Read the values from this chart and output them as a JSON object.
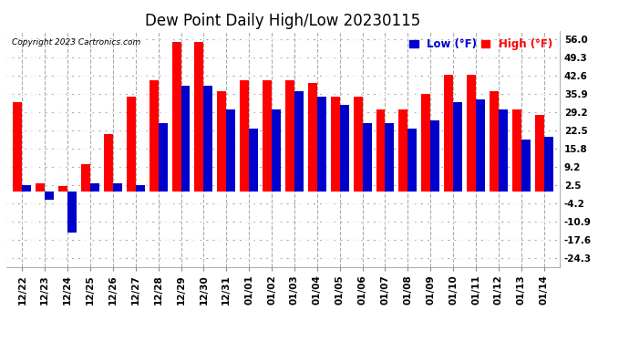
{
  "title": "Dew Point Daily High/Low 20230115",
  "copyright": "Copyright 2023 Cartronics.com",
  "legend_low_label": "Low (°F)",
  "legend_high_label": "High (°F)",
  "dates": [
    "12/22",
    "12/23",
    "12/24",
    "12/25",
    "12/26",
    "12/27",
    "12/28",
    "12/29",
    "12/30",
    "12/31",
    "01/01",
    "01/02",
    "01/03",
    "01/04",
    "01/05",
    "01/06",
    "01/07",
    "01/08",
    "01/09",
    "01/10",
    "01/11",
    "01/12",
    "01/13",
    "01/14"
  ],
  "high": [
    33.0,
    3.0,
    2.0,
    10.0,
    21.0,
    35.0,
    41.0,
    55.0,
    55.0,
    37.0,
    41.0,
    41.0,
    41.0,
    40.0,
    35.0,
    35.0,
    30.0,
    30.0,
    36.0,
    43.0,
    43.0,
    37.0,
    30.0,
    28.0
  ],
  "low": [
    2.5,
    -3.0,
    -15.0,
    3.0,
    3.0,
    2.5,
    25.0,
    39.0,
    39.0,
    30.0,
    23.0,
    30.0,
    37.0,
    35.0,
    32.0,
    25.0,
    25.0,
    23.0,
    26.0,
    33.0,
    34.0,
    30.0,
    19.0,
    20.0
  ],
  "high_color": "#ff0000",
  "low_color": "#0000cc",
  "background_color": "#ffffff",
  "grid_color": "#aaaaaa",
  "yticks": [
    -24.3,
    -17.6,
    -10.9,
    -4.2,
    2.5,
    9.2,
    15.8,
    22.5,
    29.2,
    35.9,
    42.6,
    49.3,
    56.0
  ],
  "ylim": [
    -27.5,
    59.0
  ],
  "bar_width": 0.4,
  "title_fontsize": 12,
  "tick_fontsize": 7.5,
  "legend_fontsize": 8.5
}
